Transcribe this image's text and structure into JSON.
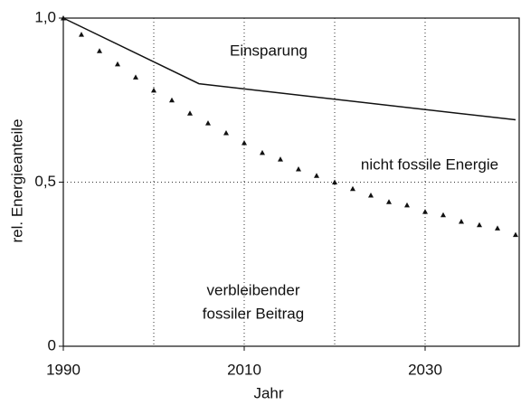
{
  "chart_data": {
    "type": "line",
    "xlabel": "Jahr",
    "ylabel": "rel. Energieanteile",
    "xlim": [
      1990,
      2040
    ],
    "ylim": [
      0,
      1
    ],
    "xticks": [
      1990,
      2010,
      2030
    ],
    "yticks": [
      {
        "value": 0,
        "label": "0"
      },
      {
        "value": 0.5,
        "label": "0,5"
      },
      {
        "value": 1,
        "label": "1,0"
      }
    ],
    "xgrid": [
      2000,
      2010,
      2020,
      2030
    ],
    "ygrid": [
      0.5
    ],
    "annotations": [
      "Einsparung",
      "nicht fossile Energie",
      "verbleibender",
      "fossiler Beitrag"
    ],
    "series": [
      {
        "style": "solid",
        "color": "#111",
        "x": [
          1990,
          2005,
          2040
        ],
        "values": [
          1.0,
          0.8,
          0.69
        ]
      },
      {
        "style": "triangles",
        "color": "#111",
        "x": [
          1990,
          1992,
          1994,
          1996,
          1998,
          2000,
          2002,
          2004,
          2006,
          2008,
          2010,
          2012,
          2014,
          2016,
          2018,
          2020,
          2022,
          2024,
          2026,
          2028,
          2030,
          2032,
          2034,
          2036,
          2038,
          2040
        ],
        "values": [
          1.0,
          0.95,
          0.9,
          0.86,
          0.82,
          0.78,
          0.75,
          0.71,
          0.68,
          0.65,
          0.62,
          0.59,
          0.57,
          0.54,
          0.52,
          0.5,
          0.48,
          0.46,
          0.44,
          0.43,
          0.41,
          0.4,
          0.38,
          0.37,
          0.36,
          0.34
        ]
      }
    ]
  }
}
